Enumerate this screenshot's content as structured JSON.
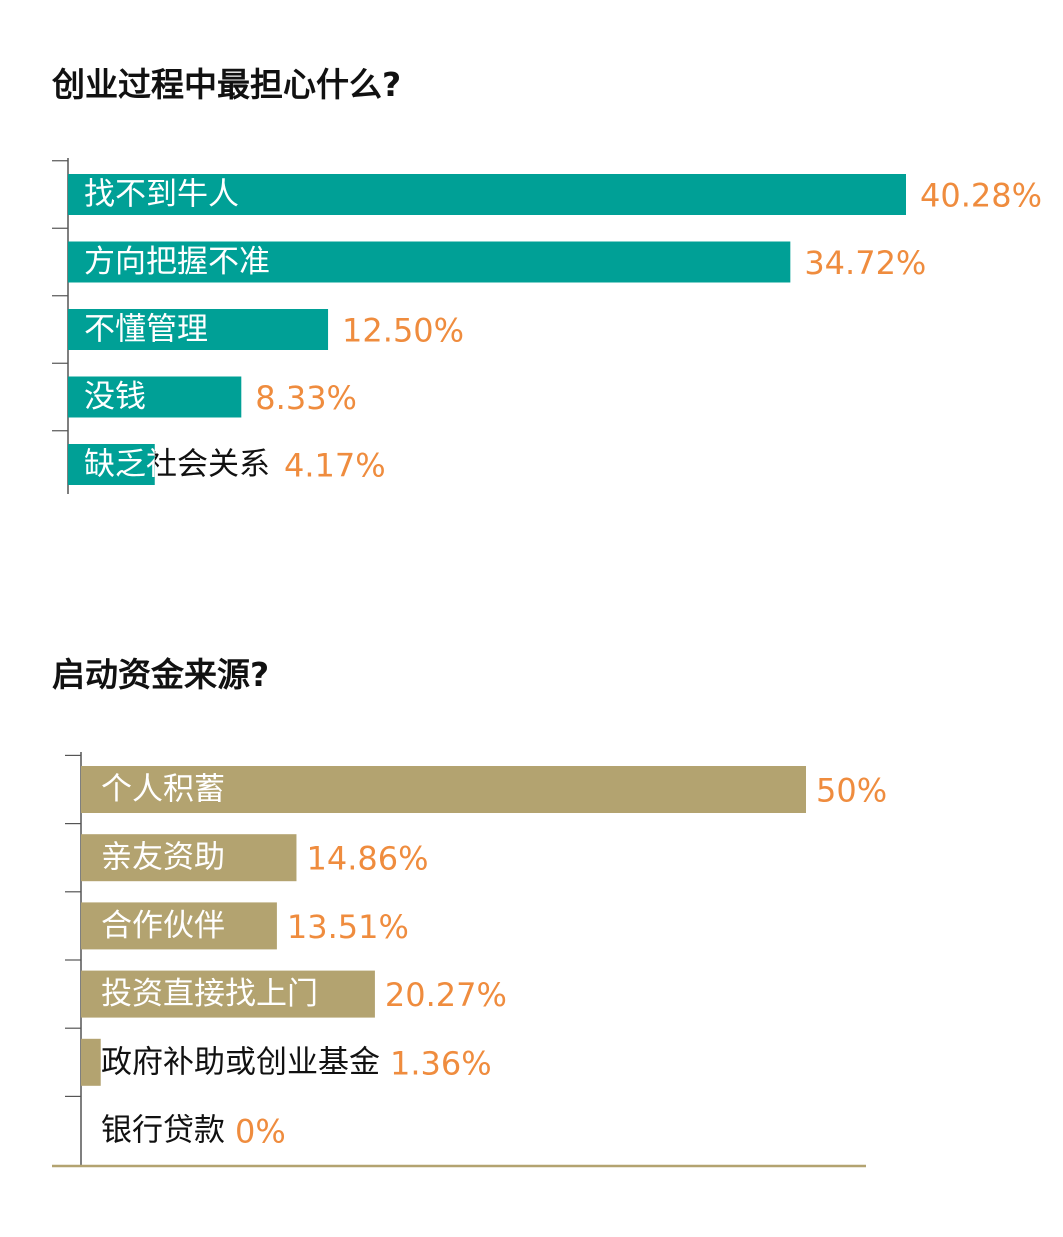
{
  "chart_data": [
    {
      "type": "bar",
      "orientation": "horizontal",
      "title": "创业过程中最担心什么?",
      "categories": [
        "找不到牛人",
        "方向把握不准",
        "不懂管理",
        "没钱",
        "缺乏社会关系"
      ],
      "values": [
        40.28,
        34.72,
        12.5,
        8.33,
        4.17
      ],
      "value_labels": [
        "40.28%",
        "34.72%",
        "12.50%",
        "8.33%",
        "4.17%"
      ],
      "unit": "%",
      "xlim": [
        0,
        40.28
      ],
      "bar_color": "#00a096",
      "label_color": "#ef8c3e",
      "grid": false
    },
    {
      "type": "bar",
      "orientation": "horizontal",
      "title": "启动资金来源?",
      "categories": [
        "个人积蓄",
        "亲友资助",
        "合作伙伴",
        "投资直接找上门",
        "政府补助或创业基金",
        "银行贷款"
      ],
      "values": [
        50,
        14.86,
        13.51,
        20.27,
        1.36,
        0
      ],
      "value_labels": [
        "50%",
        "14.86%",
        "13.51%",
        "20.27%",
        "1.36%",
        "0%"
      ],
      "unit": "%",
      "xlim": [
        0,
        50
      ],
      "bar_color": "#b3a370",
      "label_color": "#ef8c3e",
      "grid": false
    }
  ]
}
